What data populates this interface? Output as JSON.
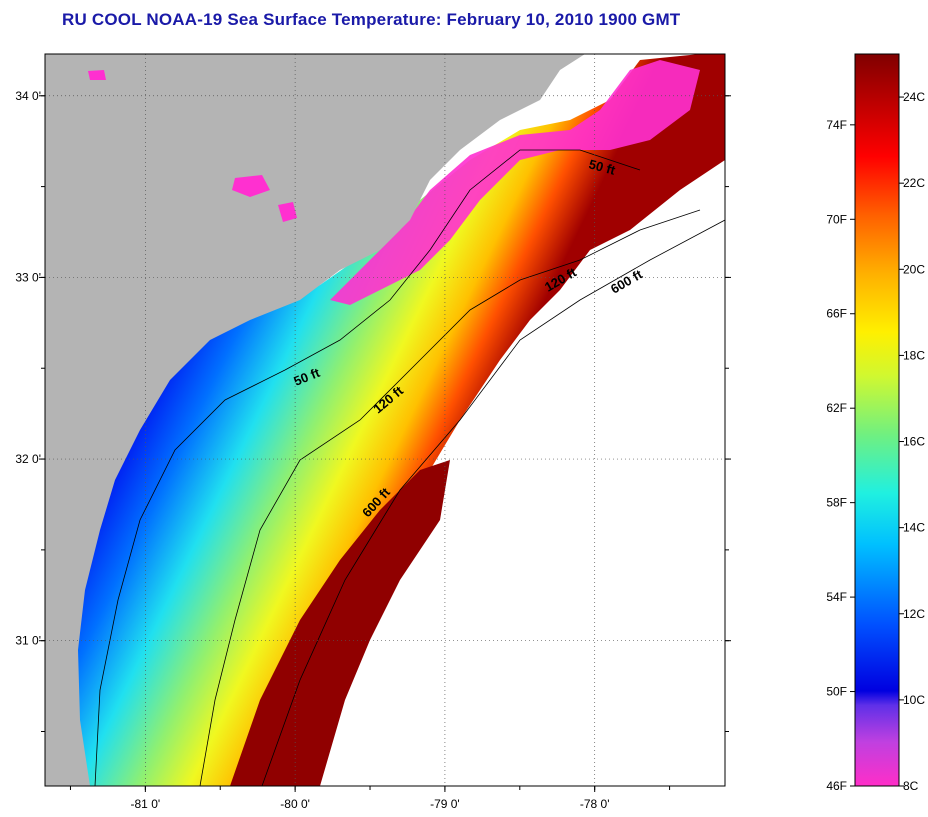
{
  "title": "RU COOL  NOAA-19  Sea Surface Temperature:  February 10, 2010 1900 GMT",
  "map": {
    "lon_ticks": [
      {
        "value": -81,
        "label": "-81 0'"
      },
      {
        "value": -80,
        "label": "-80 0'"
      },
      {
        "value": -79,
        "label": "-79 0'"
      },
      {
        "value": -78,
        "label": "-78 0'"
      }
    ],
    "lat_ticks": [
      {
        "value": 34,
        "label": "34 0'"
      },
      {
        "value": 33,
        "label": "33 0'"
      },
      {
        "value": 32,
        "label": "32 0'"
      },
      {
        "value": 31,
        "label": "31 0'"
      }
    ],
    "lon_range": [
      -81.67,
      -77.13
    ],
    "lat_range": [
      30.2,
      34.23
    ],
    "grid": true,
    "contours": [
      {
        "name": "50 ft",
        "labels": [
          "50 ft",
          "50 ft"
        ]
      },
      {
        "name": "120 ft",
        "labels": [
          "120 ft",
          "120 ft"
        ]
      },
      {
        "name": "600 ft",
        "labels": [
          "600 ft",
          "600 ft"
        ]
      }
    ],
    "colors": {
      "land": "#b4b4b4",
      "cloud": "#ffffff"
    }
  },
  "colorbar": {
    "fahrenheit_labels": [
      "74F",
      "70F",
      "66F",
      "62F",
      "58F",
      "54F",
      "50F",
      "46F"
    ],
    "celsius_labels": [
      "24C",
      "22C",
      "20C",
      "18C",
      "16C",
      "14C",
      "12C",
      "10C",
      "8C"
    ],
    "range_f": [
      46,
      77
    ],
    "range_c": [
      8,
      25
    ],
    "colors": [
      "#ff2ec8",
      "#d040e8",
      "#9040f0",
      "#0000e0",
      "#0040ff",
      "#0090ff",
      "#00d8ff",
      "#40f0c0",
      "#90f060",
      "#e8f820",
      "#ffe000",
      "#ffa000",
      "#ff5000",
      "#e00000",
      "#a00000",
      "#800000"
    ]
  }
}
